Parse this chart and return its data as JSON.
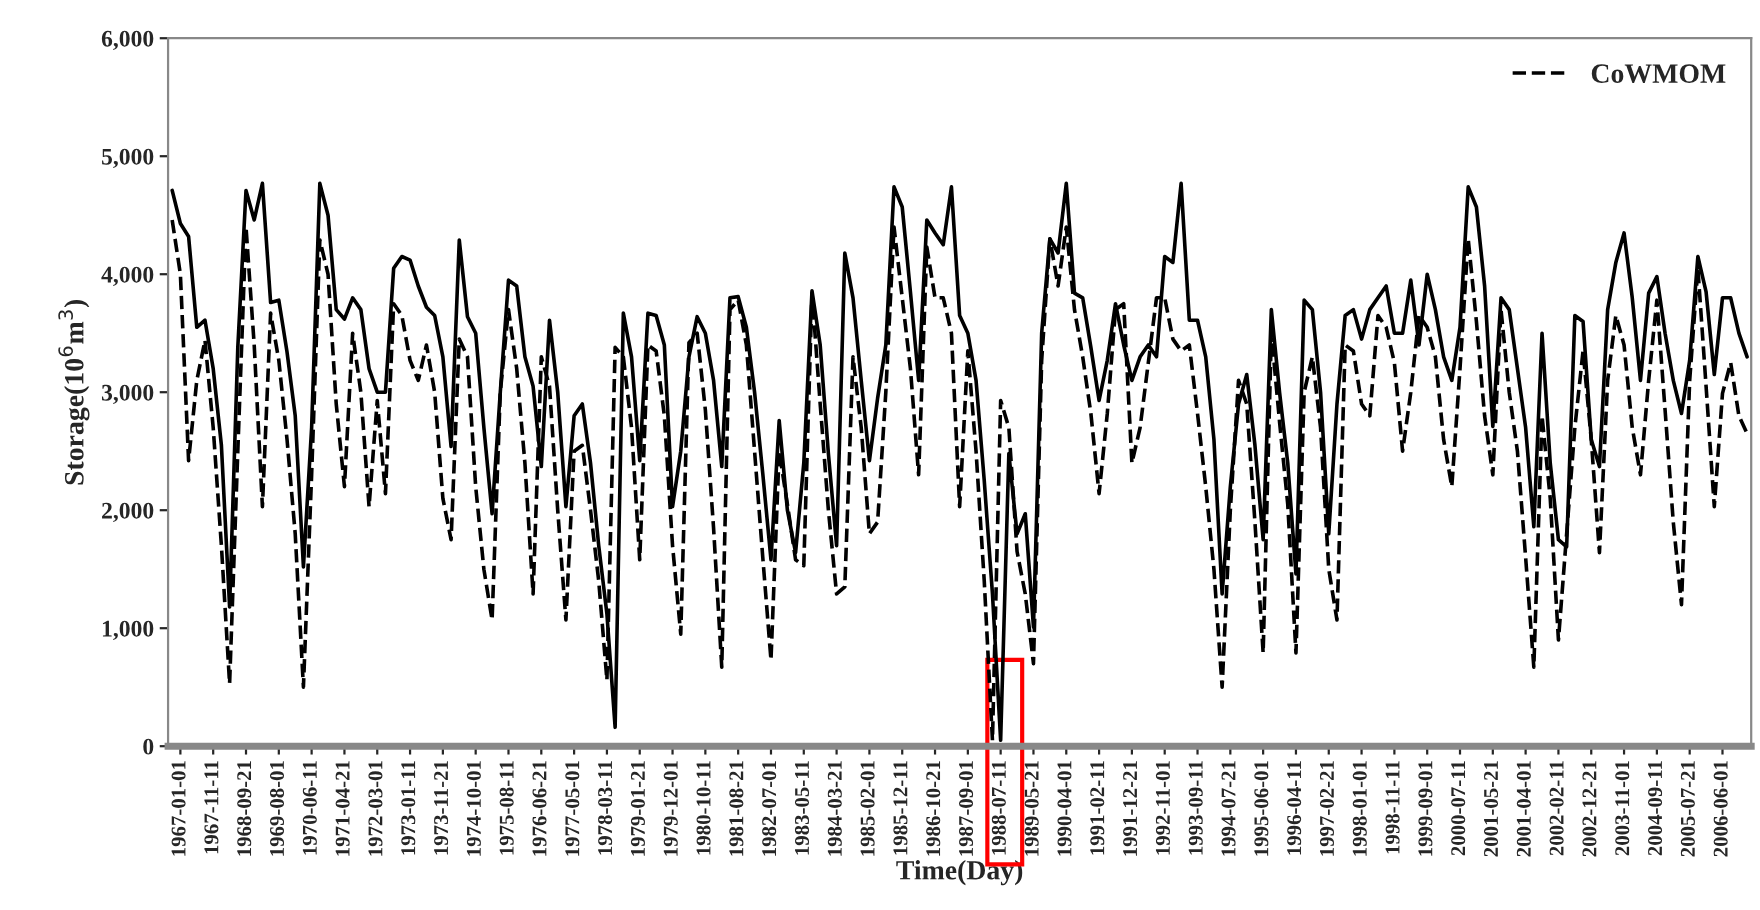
{
  "chart_data": {
    "type": "line",
    "xlabel": "Time(Day)",
    "ylabel": "Storage(10$^{6}$m$^{3}$)",
    "ylim": [
      0,
      6000
    ],
    "yticks": [
      {
        "value": 0,
        "label": "0"
      },
      {
        "value": 1000,
        "label": "1,000"
      },
      {
        "value": 2000,
        "label": "2,000"
      },
      {
        "value": 3000,
        "label": "3,000"
      },
      {
        "value": 4000,
        "label": "4,000"
      },
      {
        "value": 5000,
        "label": "5,000"
      },
      {
        "value": 6000,
        "label": "6,000"
      }
    ],
    "categories": [
      null,
      "1967-01-01",
      null,
      null,
      null,
      "1967-11-11",
      null,
      null,
      null,
      "1968-09-21",
      null,
      null,
      null,
      "1969-08-01",
      null,
      null,
      null,
      "1970-06-11",
      null,
      null,
      null,
      "1971-04-21",
      null,
      null,
      null,
      "1972-03-01",
      null,
      null,
      null,
      "1973-01-11",
      null,
      null,
      null,
      "1973-11-21",
      null,
      null,
      null,
      "1974-10-01",
      null,
      null,
      null,
      "1975-08-11",
      null,
      null,
      null,
      "1976-06-21",
      null,
      null,
      null,
      "1977-05-01",
      null,
      null,
      null,
      "1978-03-11",
      null,
      null,
      null,
      "1979-01-21",
      null,
      null,
      null,
      "1979-12-01",
      null,
      null,
      null,
      "1980-10-11",
      null,
      null,
      null,
      "1981-08-21",
      null,
      null,
      null,
      "1982-07-01",
      null,
      null,
      null,
      "1983-05-11",
      null,
      null,
      null,
      "1984-03-21",
      null,
      null,
      null,
      "1985-02-01",
      null,
      null,
      null,
      "1985-12-11",
      null,
      null,
      null,
      "1986-10-21",
      null,
      null,
      null,
      "1987-09-01",
      null,
      null,
      null,
      "1988-07-11",
      null,
      null,
      null,
      "1989-05-21",
      null,
      null,
      null,
      "1990-04-01",
      null,
      null,
      null,
      "1991-02-11",
      null,
      null,
      null,
      "1991-12-21",
      null,
      null,
      null,
      "1992-11-01",
      null,
      null,
      null,
      "1993-09-11",
      null,
      null,
      null,
      "1994-07-21",
      null,
      null,
      null,
      "1995-06-01",
      null,
      null,
      null,
      "1996-04-11",
      null,
      null,
      null,
      "1997-02-21",
      null,
      null,
      null,
      "1998-01-01",
      null,
      null,
      null,
      "1998-11-11",
      null,
      null,
      null,
      "1999-09-01",
      null,
      null,
      null,
      "2000-07-11",
      null,
      null,
      null,
      "2001-05-21",
      null,
      null,
      null,
      "2001-04-01",
      null,
      null,
      null,
      "2002-02-11",
      null,
      null,
      null,
      "2002-12-21",
      null,
      null,
      null,
      "2003-11-01",
      null,
      null,
      null,
      "2004-09-11",
      null,
      null,
      null,
      "2005-07-21",
      null,
      null,
      null,
      "2006-06-01",
      null,
      null,
      null
    ],
    "grid": false,
    "legend": "top right",
    "marker": "none",
    "series": [
      {
        "name": "CoWMOM",
        "color": "#000000",
        "line_style": "dashed",
        "values": [
          4460,
          4000,
          2420,
          3100,
          3440,
          2700,
          1700,
          530,
          2500,
          4400,
          3400,
          2030,
          3670,
          3270,
          2600,
          1800,
          500,
          2300,
          4290,
          4000,
          2900,
          2200,
          3500,
          3000,
          2030,
          2930,
          2140,
          3750,
          3650,
          3270,
          3100,
          3400,
          3000,
          2100,
          1750,
          3450,
          3300,
          2200,
          1500,
          1070,
          3000,
          3700,
          3200,
          2400,
          1290,
          3300,
          3050,
          2000,
          1070,
          2500,
          2550,
          2000,
          1400,
          560,
          3380,
          3300,
          2700,
          1580,
          3400,
          3350,
          2800,
          1700,
          950,
          3420,
          3500,
          2850,
          1850,
          670,
          3700,
          3780,
          3400,
          2500,
          1600,
          730,
          2500,
          2050,
          1580,
          1530,
          3840,
          2900,
          2000,
          1290,
          1350,
          3300,
          2700,
          1800,
          1900,
          3000,
          4400,
          3800,
          3200,
          2300,
          4230,
          3800,
          3800,
          3500,
          2030,
          3350,
          2500,
          1400,
          50,
          2930,
          2700,
          1650,
          1290,
          700,
          3270,
          4300,
          3900,
          4400,
          3700,
          3300,
          2820,
          2140,
          2820,
          3700,
          3750,
          2400,
          2700,
          3250,
          3800,
          3800,
          3450,
          3350,
          3400,
          2820,
          2200,
          1500,
          500,
          2000,
          3100,
          2900,
          1900,
          790,
          3500,
          2750,
          2050,
          790,
          3000,
          3300,
          2700,
          1500,
          1070,
          3400,
          3350,
          2900,
          2800,
          3650,
          3550,
          3250,
          2500,
          3000,
          3650,
          3550,
          3300,
          2600,
          2200,
          3200,
          4300,
          3600,
          2800,
          2300,
          3700,
          3000,
          2500,
          1600,
          670,
          2800,
          2100,
          900,
          1800,
          2700,
          3350,
          2600,
          1640,
          3100,
          3650,
          3400,
          2700,
          2300,
          3100,
          3780,
          2850,
          1900,
          1200,
          3100,
          4050,
          3050,
          2030,
          2990,
          3250,
          2800,
          2650
        ]
      },
      {
        "color": "#000000",
        "line_style": "solid",
        "values": [
          4710,
          4430,
          4320,
          3550,
          3610,
          3200,
          2550,
          1180,
          3380,
          4710,
          4460,
          4770,
          3760,
          3780,
          3340,
          2800,
          1520,
          2700,
          4770,
          4500,
          3700,
          3620,
          3800,
          3700,
          3200,
          3000,
          3000,
          4050,
          4150,
          4120,
          3900,
          3720,
          3650,
          3300,
          2540,
          4290,
          3640,
          3500,
          2700,
          1970,
          3000,
          3950,
          3900,
          3300,
          3050,
          2370,
          3610,
          3000,
          2030,
          2800,
          2900,
          2400,
          1700,
          1120,
          160,
          3670,
          3300,
          2420,
          3670,
          3650,
          3400,
          2030,
          2500,
          3300,
          3640,
          3500,
          3100,
          2370,
          3800,
          3810,
          3550,
          3000,
          2310,
          1580,
          2760,
          2000,
          1640,
          2400,
          3860,
          3400,
          2480,
          1700,
          4180,
          3800,
          3100,
          2420,
          2950,
          3400,
          4740,
          4570,
          3850,
          3100,
          4460,
          4350,
          4250,
          4740,
          3650,
          3500,
          3100,
          2250,
          1290,
          50,
          2480,
          1800,
          1970,
          1010,
          3500,
          4300,
          4180,
          4770,
          3840,
          3800,
          3380,
          2930,
          3270,
          3750,
          3400,
          3100,
          3300,
          3400,
          3300,
          4150,
          4100,
          4770,
          3610,
          3610,
          3300,
          2600,
          1290,
          2200,
          2900,
          3150,
          2550,
          1750,
          3700,
          3000,
          2400,
          1460,
          3780,
          3700,
          3000,
          1800,
          2900,
          3650,
          3700,
          3450,
          3700,
          3800,
          3900,
          3500,
          3500,
          3950,
          3400,
          4000,
          3700,
          3300,
          3100,
          3550,
          4740,
          4570,
          3900,
          2710,
          3800,
          3700,
          3200,
          2700,
          1860,
          3500,
          2400,
          1750,
          1690,
          3650,
          3600,
          2600,
          2370,
          3700,
          4100,
          4350,
          3800,
          3100,
          3840,
          3980,
          3500,
          3100,
          2820,
          3270,
          4150,
          3850,
          3150,
          3800,
          3800,
          3500,
          3300
        ]
      }
    ]
  }
}
